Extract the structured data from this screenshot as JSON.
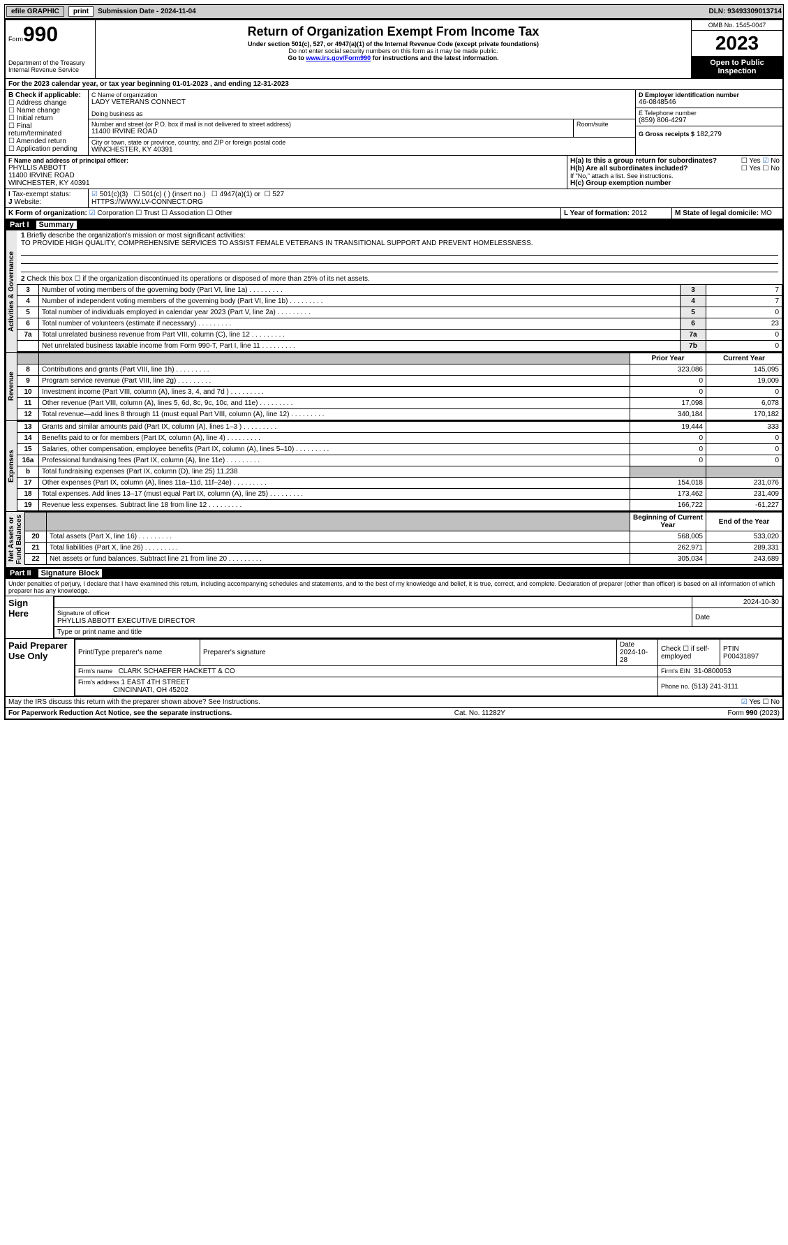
{
  "topbar": {
    "efile": "efile GRAPHIC",
    "print": "print",
    "submission": "Submission Date - 2024-11-04",
    "dln": "DLN: 93493309013714"
  },
  "header": {
    "form_label": "Form",
    "form_no": "990",
    "title": "Return of Organization Exempt From Income Tax",
    "subtitle": "Under section 501(c), 527, or 4947(a)(1) of the Internal Revenue Code (except private foundations)",
    "ssn_note": "Do not enter social security numbers on this form as it may be made public.",
    "goto_prefix": "Go to ",
    "goto_link": "www.irs.gov/Form990",
    "goto_suffix": " for instructions and the latest information.",
    "dept": "Department of the Treasury\nInternal Revenue Service",
    "omb": "OMB No. 1545-0047",
    "year": "2023",
    "inspection": "Open to Public Inspection"
  },
  "sectionA": {
    "tax_year": "For the 2023 calendar year, or tax year beginning 01-01-2023   , and ending 12-31-2023",
    "B_label": "B Check if applicable:",
    "B_opts": [
      "Address change",
      "Name change",
      "Initial return",
      "Final return/terminated",
      "Amended return",
      "Application pending"
    ],
    "C_name_label": "C Name of organization",
    "org_name": "LADY VETERANS CONNECT",
    "dba_label": "Doing business as",
    "addr_label": "Number and street (or P.O. box if mail is not delivered to street address)",
    "addr": "11400 IRVINE ROAD",
    "room_label": "Room/suite",
    "city_label": "City or town, state or province, country, and ZIP or foreign postal code",
    "city": "WINCHESTER, KY  40391",
    "D_label": "D Employer identification number",
    "D_val": "46-0848546",
    "E_label": "E Telephone number",
    "E_val": "(859) 806-4297",
    "G_label": "G Gross receipts $",
    "G_val": "182,279",
    "F_label": "F  Name and address of principal officer:",
    "F_name": "PHYLLIS ABBOTT",
    "F_addr1": "11400 IRVINE ROAD",
    "F_addr2": "WINCHESTER, KY  40391",
    "Ha_label": "H(a)  Is this a group return for subordinates?",
    "Hb_label": "H(b)  Are all subordinates included?",
    "H_note": "If \"No,\" attach a list. See instructions.",
    "Hc_label": "H(c)  Group exemption number",
    "I_label": "Tax-exempt status:",
    "I_501c3": "501(c)(3)",
    "I_501c": "501(c) (  ) (insert no.)",
    "I_4947": "4947(a)(1) or",
    "I_527": "527",
    "J_label": "Website:",
    "J_val": "HTTPS://WWW.LV-CONNECT.ORG",
    "K_label": "K Form of organization:",
    "K_opts": [
      "Corporation",
      "Trust",
      "Association",
      "Other"
    ],
    "L_label": "L Year of formation:",
    "L_val": "2012",
    "M_label": "M State of legal domicile:",
    "M_val": "MO"
  },
  "part1": {
    "title": "Part I",
    "subtitle": "Summary",
    "line1_label": "Briefly describe the organization's mission or most significant activities:",
    "mission": "TO PROVIDE HIGH QUALITY, COMPREHENSIVE SERVICES TO ASSIST FEMALE VETERANS IN TRANSITIONAL SUPPORT AND PREVENT HOMELESSNESS.",
    "line2": "Check this box ☐  if the organization discontinued its operations or disposed of more than 25% of its net assets.",
    "gov_lines": [
      {
        "n": "3",
        "d": "Number of voting members of the governing body (Part VI, line 1a)",
        "ln": "3",
        "v": "7"
      },
      {
        "n": "4",
        "d": "Number of independent voting members of the governing body (Part VI, line 1b)",
        "ln": "4",
        "v": "7"
      },
      {
        "n": "5",
        "d": "Total number of individuals employed in calendar year 2023 (Part V, line 2a)",
        "ln": "5",
        "v": "0"
      },
      {
        "n": "6",
        "d": "Total number of volunteers (estimate if necessary)",
        "ln": "6",
        "v": "23"
      },
      {
        "n": "7a",
        "d": "Total unrelated business revenue from Part VIII, column (C), line 12",
        "ln": "7a",
        "v": "0"
      },
      {
        "n": "",
        "d": "Net unrelated business taxable income from Form 990-T, Part I, line 11",
        "ln": "7b",
        "v": "0"
      }
    ],
    "col_prior": "Prior Year",
    "col_current": "Current Year",
    "rev_lines": [
      {
        "n": "8",
        "d": "Contributions and grants (Part VIII, line 1h)",
        "p": "323,086",
        "c": "145,095"
      },
      {
        "n": "9",
        "d": "Program service revenue (Part VIII, line 2g)",
        "p": "0",
        "c": "19,009"
      },
      {
        "n": "10",
        "d": "Investment income (Part VIII, column (A), lines 3, 4, and 7d )",
        "p": "0",
        "c": "0"
      },
      {
        "n": "11",
        "d": "Other revenue (Part VIII, column (A), lines 5, 6d, 8c, 9c, 10c, and 11e)",
        "p": "17,098",
        "c": "6,078"
      },
      {
        "n": "12",
        "d": "Total revenue—add lines 8 through 11 (must equal Part VIII, column (A), line 12)",
        "p": "340,184",
        "c": "170,182"
      }
    ],
    "exp_lines": [
      {
        "n": "13",
        "d": "Grants and similar amounts paid (Part IX, column (A), lines 1–3 )",
        "p": "19,444",
        "c": "333"
      },
      {
        "n": "14",
        "d": "Benefits paid to or for members (Part IX, column (A), line 4)",
        "p": "0",
        "c": "0"
      },
      {
        "n": "15",
        "d": "Salaries, other compensation, employee benefits (Part IX, column (A), lines 5–10)",
        "p": "0",
        "c": "0"
      },
      {
        "n": "16a",
        "d": "Professional fundraising fees (Part IX, column (A), line 11e)",
        "p": "0",
        "c": "0"
      },
      {
        "n": "b",
        "d": "Total fundraising expenses (Part IX, column (D), line 25) 11,238",
        "p": "",
        "c": "",
        "shade": true
      },
      {
        "n": "17",
        "d": "Other expenses (Part IX, column (A), lines 11a–11d, 11f–24e)",
        "p": "154,018",
        "c": "231,076"
      },
      {
        "n": "18",
        "d": "Total expenses. Add lines 13–17 (must equal Part IX, column (A), line 25)",
        "p": "173,462",
        "c": "231,409"
      },
      {
        "n": "19",
        "d": "Revenue less expenses. Subtract line 18 from line 12",
        "p": "166,722",
        "c": "-61,227"
      }
    ],
    "col_begin": "Beginning of Current Year",
    "col_end": "End of the Year",
    "na_lines": [
      {
        "n": "20",
        "d": "Total assets (Part X, line 16)",
        "p": "568,005",
        "c": "533,020"
      },
      {
        "n": "21",
        "d": "Total liabilities (Part X, line 26)",
        "p": "262,971",
        "c": "289,331"
      },
      {
        "n": "22",
        "d": "Net assets or fund balances. Subtract line 21 from line 20",
        "p": "305,034",
        "c": "243,689"
      }
    ]
  },
  "part2": {
    "title": "Part II",
    "subtitle": "Signature Block",
    "declaration": "Under penalties of perjury, I declare that I have examined this return, including accompanying schedules and statements, and to the best of my knowledge and belief, it is true, correct, and complete. Declaration of preparer (other than officer) is based on all information of which preparer has any knowledge.",
    "sign_here": "Sign Here",
    "sig_of_officer": "Signature of officer",
    "officer_name": "PHYLLIS ABBOTT EXECUTIVE DIRECTOR",
    "type_name": "Type or print name and title",
    "date_label": "Date",
    "sig_date": "2024-10-30",
    "paid": "Paid Preparer Use Only",
    "prep_name_lbl": "Print/Type preparer's name",
    "prep_sig_lbl": "Preparer's signature",
    "prep_date": "2024-10-28",
    "check_if": "Check ☐ if self-employed",
    "ptin_lbl": "PTIN",
    "ptin": "P00431897",
    "firm_name_lbl": "Firm's name",
    "firm_name": "CLARK SCHAEFER HACKETT & CO",
    "firm_ein_lbl": "Firm's EIN",
    "firm_ein": "31-0800053",
    "firm_addr_lbl": "Firm's address",
    "firm_addr1": "1 EAST 4TH STREET",
    "firm_addr2": "CINCINNATI, OH  45202",
    "phone_lbl": "Phone no.",
    "phone": "(513) 241-3111",
    "may_irs": "May the IRS discuss this return with the preparer shown above? See Instructions.",
    "paperwork": "For Paperwork Reduction Act Notice, see the separate instructions.",
    "cat": "Cat. No. 11282Y",
    "form_ref": "Form 990 (2023)"
  }
}
